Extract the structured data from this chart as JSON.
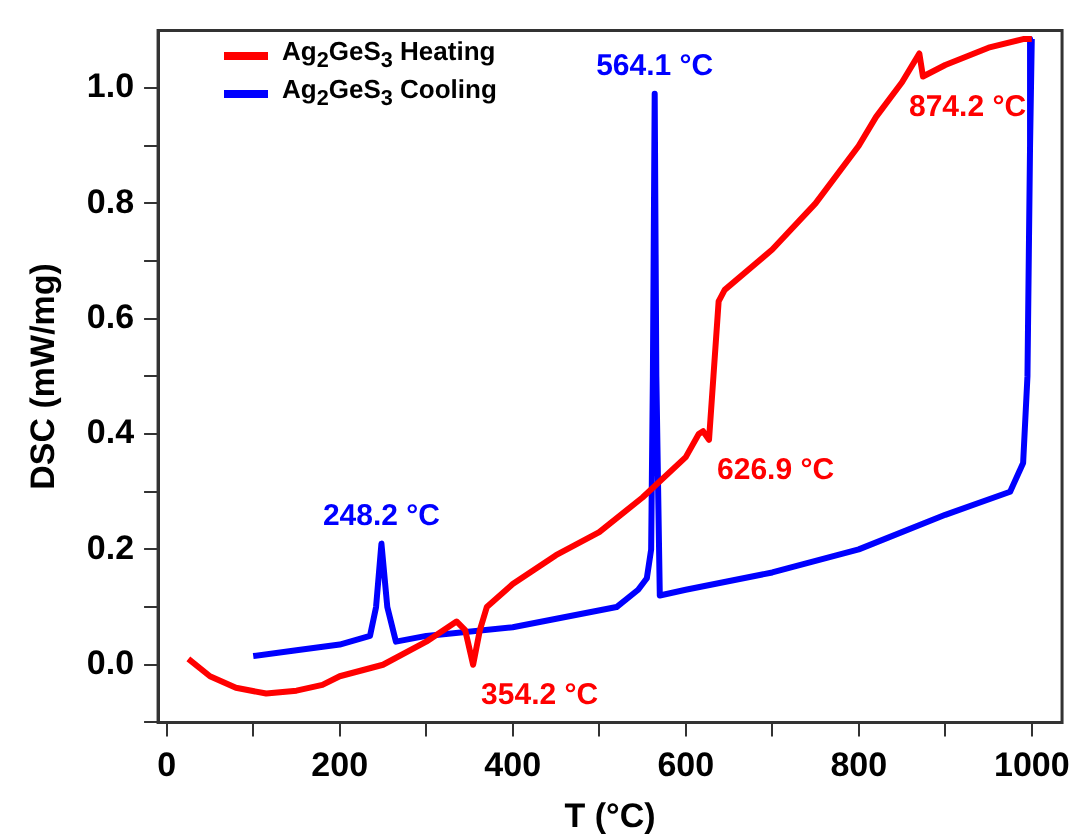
{
  "chart_data": {
    "type": "line",
    "xlabel": "T (°C)",
    "ylabel": "DSC (mW/mg)",
    "xlim": [
      -10,
      1035
    ],
    "ylim": [
      -0.1,
      1.1
    ],
    "xticks": [
      0,
      {
        "value": 100,
        "label": null
      },
      200,
      {
        "value": 300,
        "label": null
      },
      400,
      {
        "value": 500,
        "label": null
      },
      600,
      {
        "value": 700,
        "label": null
      },
      800,
      {
        "value": 900,
        "label": null
      },
      1000
    ],
    "yticks": [
      {
        "value": -0.1,
        "label": null
      },
      "0.0",
      {
        "value": 0.1,
        "label": null
      },
      0.2,
      {
        "value": 0.3,
        "label": null
      },
      0.4,
      {
        "value": 0.5,
        "label": null
      },
      0.6,
      {
        "value": 0.7,
        "label": null
      },
      0.8,
      {
        "value": 0.9,
        "label": null
      },
      "1.0"
    ],
    "grid": false,
    "legend": "top left",
    "marker": "none",
    "line_style": "solid",
    "series": [
      {
        "name": "Ag$_{2}$GeS$_{3}$ Heating",
        "color": "#ff0000",
        "x": [
          25,
          50,
          80,
          115,
          150,
          180,
          200,
          250,
          300,
          335,
          345,
          354.2,
          362,
          370,
          400,
          450,
          500,
          550,
          600,
          615,
          620,
          626.9,
          632,
          638,
          645,
          700,
          750,
          800,
          820,
          850,
          870,
          874.2,
          900,
          950,
          990,
          1000
        ],
        "values": [
          0.01,
          -0.02,
          -0.04,
          -0.05,
          -0.045,
          -0.035,
          -0.02,
          0.0,
          0.04,
          0.075,
          0.06,
          0.0,
          0.06,
          0.1,
          0.14,
          0.19,
          0.23,
          0.29,
          0.36,
          0.4,
          0.405,
          0.39,
          0.5,
          0.63,
          0.65,
          0.72,
          0.8,
          0.9,
          0.95,
          1.01,
          1.06,
          1.02,
          1.04,
          1.07,
          1.085,
          1.085
        ]
      },
      {
        "name": "Ag$_{2}$GeS$_{3}$ Cooling",
        "color": "#0000ff",
        "x": [
          1000,
          998,
          995,
          990,
          975,
          900,
          800,
          700,
          600,
          570,
          566,
          564.1,
          562,
          560,
          555,
          545,
          520,
          400,
          300,
          265,
          255,
          248.2,
          242,
          235,
          200,
          150,
          100
        ],
        "values": [
          1.085,
          0.9,
          0.5,
          0.35,
          0.3,
          0.26,
          0.2,
          0.16,
          0.13,
          0.12,
          0.5,
          0.99,
          0.5,
          0.2,
          0.15,
          0.13,
          0.1,
          0.065,
          0.05,
          0.04,
          0.1,
          0.21,
          0.1,
          0.05,
          0.035,
          0.025,
          0.015
        ]
      }
    ],
    "annotations": [
      {
        "text": "564.1 °C",
        "x": 564.1,
        "y": 0.99
      },
      {
        "text": "874.2 °C",
        "x": 874.2,
        "y": 1.02
      },
      {
        "text": "626.9 °C",
        "x": 626.9,
        "y": 0.39
      },
      {
        "text": "354.2 °C",
        "x": 354.2,
        "y": 0.0
      },
      {
        "text": "248.2 °C",
        "x": 248.2,
        "y": 0.21
      }
    ]
  }
}
